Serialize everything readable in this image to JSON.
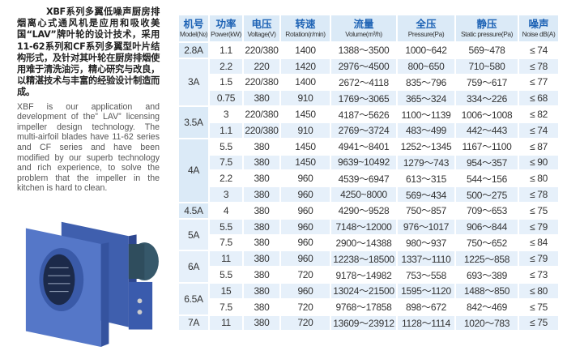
{
  "intro": {
    "chinese": "XBF系列多翼低噪声厨房排烟离心式通风机是应用和吸收美国“LAV”牌叶轮的设计技术，采用11-62系列和CF系列多翼型叶片结构形式，及针对其叶轮在厨房排烟使用难于清洗油污，精心研究与改良，以精湛技术与丰富的经验设计制造而成。",
    "english": "XBF is our application and development of the” LAV” licensing impeller design technology. The multi-airfoil blades have 11-62 series and CF series and have been modified by our superb technology and rich experience, to solve the problem that the impeller in the kitchen is hard to clean."
  },
  "colors": {
    "header_bg": "#dbeaf7",
    "header_text": "#1e63b5",
    "stripe": "#e6f0fa",
    "fan_body": "#4a6fc0"
  },
  "table": {
    "headers": [
      {
        "zh": "机号",
        "en": "Model(№)"
      },
      {
        "zh": "功率",
        "en": "Power(kW)"
      },
      {
        "zh": "电压",
        "en": "Voltage(V)"
      },
      {
        "zh": "转速",
        "en": "Rotation(r/min)"
      },
      {
        "zh": "流量",
        "en": "Volume(m³/h)"
      },
      {
        "zh": "全压",
        "en": "Pressure(Pa)"
      },
      {
        "zh": "静压",
        "en": "Static pressure(Pa)"
      },
      {
        "zh": "噪声",
        "en": "Noise dB(A)"
      }
    ],
    "groups": [
      {
        "model": "2.8A",
        "rows": [
          [
            "1.1",
            "220/380",
            "1400",
            "1388～3500",
            "1000~642",
            "569~478",
            "≤ 74"
          ]
        ]
      },
      {
        "model": "3A",
        "rows": [
          [
            "2.2",
            "220",
            "1420",
            "2976～4500",
            "800~650",
            "710~580",
            "≤ 78"
          ],
          [
            "1.5",
            "220/380",
            "1400",
            "2672～4118",
            "835～796",
            "759～617",
            "≤ 77"
          ],
          [
            "0.75",
            "380",
            "910",
            "1769～3065",
            "365～324",
            "334～226",
            "≤ 68"
          ]
        ]
      },
      {
        "model": "3.5A",
        "rows": [
          [
            "3",
            "220/380",
            "1450",
            "4187～5626",
            "1100～1139",
            "1006～1008",
            "≤ 82"
          ],
          [
            "1.1",
            "220/380",
            "910",
            "2769～3724",
            "483～499",
            "442～443",
            "≤ 74"
          ]
        ]
      },
      {
        "model": "4A",
        "rows": [
          [
            "5.5",
            "380",
            "1450",
            "4941～8401",
            "1252～1345",
            "1167～1100",
            "≤ 87"
          ],
          [
            "7.5",
            "380",
            "1450",
            "9639~10492",
            "1279～743",
            "954～357",
            "≤ 90"
          ],
          [
            "2.2",
            "380",
            "960",
            "4539～6947",
            "613～315",
            "544～156",
            "≤ 80"
          ],
          [
            "3",
            "380",
            "960",
            "4250~8000",
            "569～434",
            "500～275",
            "≤ 78"
          ]
        ]
      },
      {
        "model": "4.5A",
        "rows": [
          [
            "4",
            "380",
            "960",
            "4290～9528",
            "750～857",
            "709～653",
            "≤ 75"
          ]
        ]
      },
      {
        "model": "5A",
        "rows": [
          [
            "5.5",
            "380",
            "960",
            "7148～12000",
            "976～1017",
            "906～844",
            "≤ 79"
          ],
          [
            "7.5",
            "380",
            "960",
            "2900～14388",
            "980～937",
            "750～652",
            "≤ 84"
          ]
        ]
      },
      {
        "model": "6A",
        "rows": [
          [
            "11",
            "380",
            "960",
            "12238～18500",
            "1337～1110",
            "1225～858",
            "≤ 79"
          ],
          [
            "5.5",
            "380",
            "720",
            "9178～14982",
            "753～558",
            "693～389",
            "≤ 73"
          ]
        ]
      },
      {
        "model": "6.5A",
        "rows": [
          [
            "15",
            "380",
            "960",
            "13024～21500",
            "1595～1120",
            "1488～850",
            "≤ 80"
          ],
          [
            "7.5",
            "380",
            "720",
            "9768～17858",
            "898～672",
            "842～469",
            "≤ 75"
          ]
        ]
      },
      {
        "model": "7A",
        "rows": [
          [
            "11",
            "380",
            "720",
            "13609～23912",
            "1128～1114",
            "1020～783",
            "≤ 75"
          ]
        ]
      }
    ]
  }
}
